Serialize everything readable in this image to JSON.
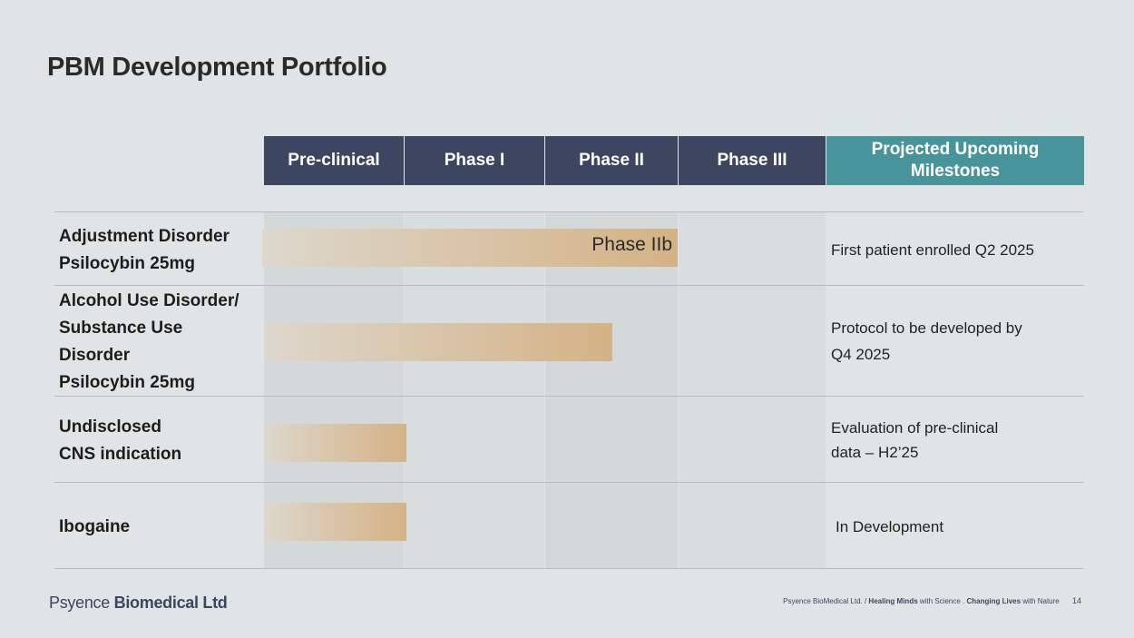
{
  "title": "PBM Development Portfolio",
  "columns": {
    "preclinical": "Pre-clinical",
    "phase1": "Phase I",
    "phase2": "Phase II",
    "phase3": "Phase III",
    "milestones_line1": "Projected Upcoming",
    "milestones_line2": "Milestones"
  },
  "rows": [
    {
      "label_lines": [
        "Adjustment Disorder",
        "Psilocybin 25mg"
      ],
      "bar_label": "Phase IIb",
      "milestone_lines": [
        "First patient enrolled Q2 2025"
      ]
    },
    {
      "label_lines": [
        "Alcohol Use Disorder/",
        "Substance Use",
        "Disorder",
        "Psilocybin 25mg"
      ],
      "milestone_lines": [
        "Protocol to be developed by",
        "Q4 2025"
      ]
    },
    {
      "label_lines": [
        "Undisclosed",
        "CNS indication"
      ],
      "milestone_lines": [
        "Evaluation of pre-clinical",
        "data – H2’25"
      ]
    },
    {
      "label_lines": [
        "Ibogaine"
      ],
      "milestone_lines": [
        "In Development"
      ]
    }
  ],
  "footer": {
    "logo_light": "Psyence",
    "logo_bold": "Biomedical Ltd",
    "company": "Psyence BioMedical Ltd. /",
    "tagline_bold1": "Healing Minds",
    "tagline_mid": "with Science .",
    "tagline_bold2": "Changing Lives",
    "tagline_end": "with Nature",
    "page_number": "14"
  },
  "colors": {
    "header_bg": "#3e4561",
    "milestone_header_bg": "#47959b",
    "bar_start": "#ddd7cc",
    "bar_end": "#d4b285"
  }
}
